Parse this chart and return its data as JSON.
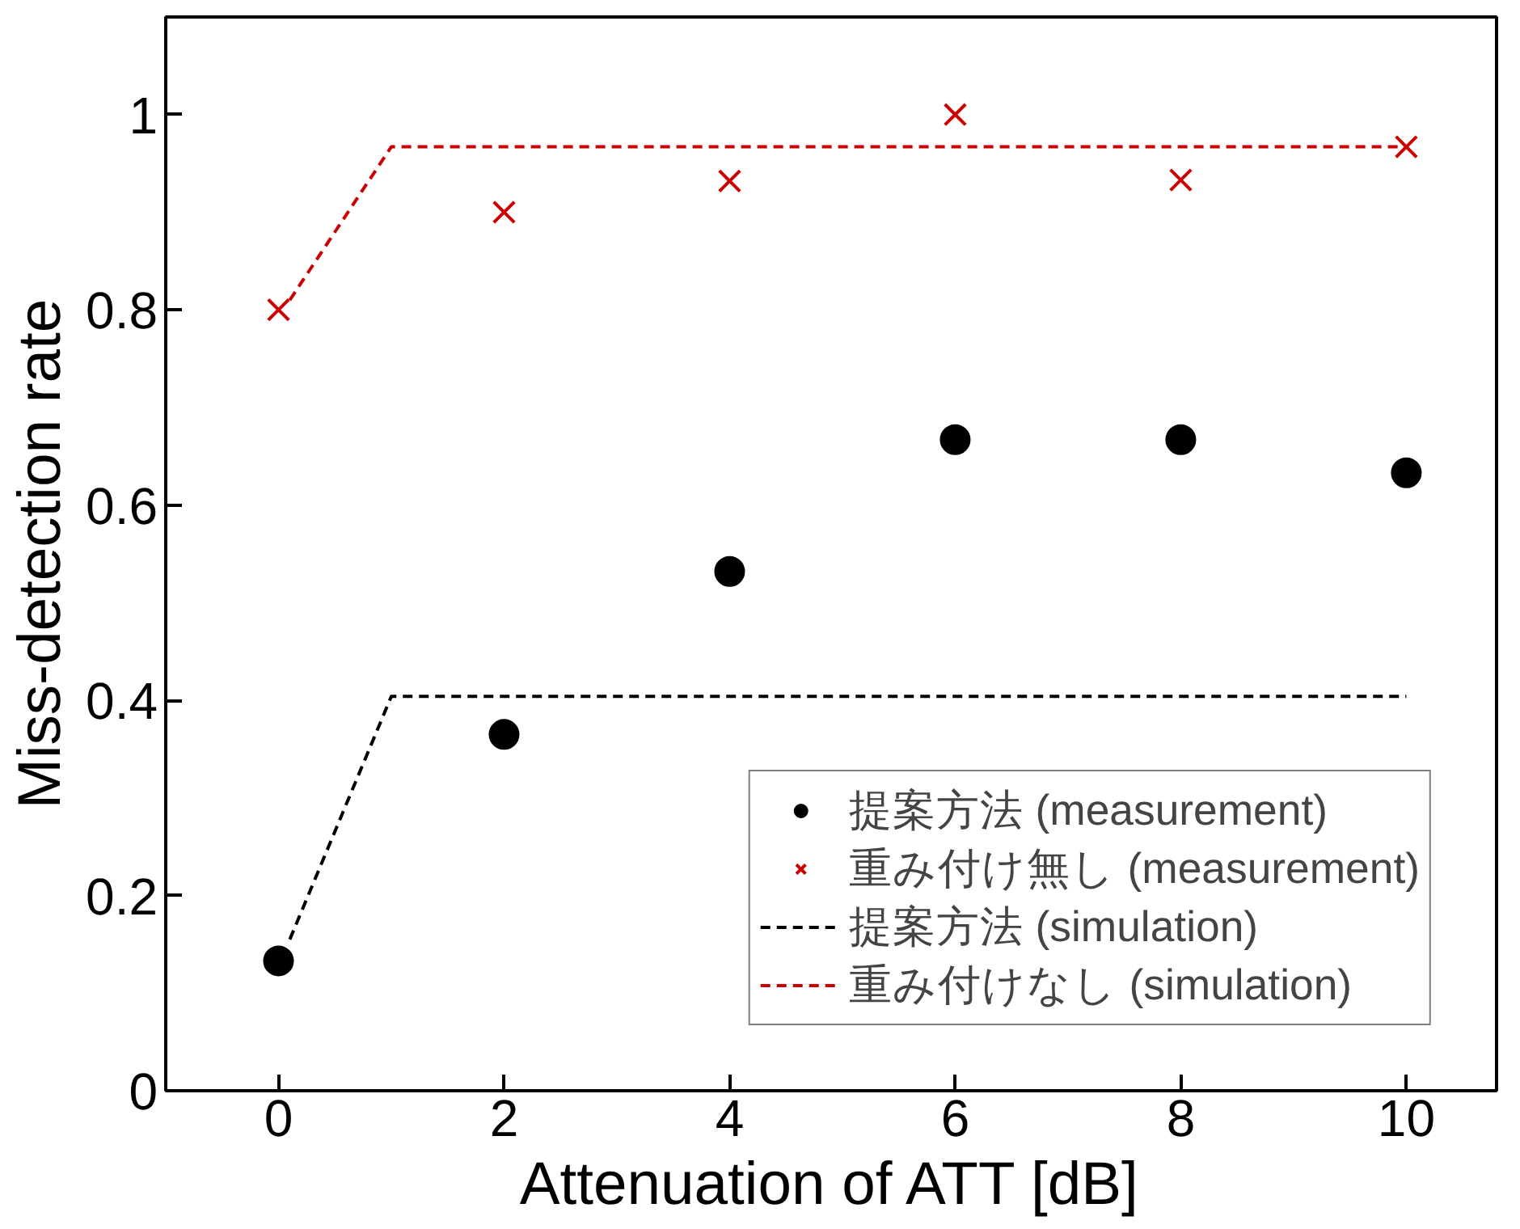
{
  "chart_data": {
    "type": "scatter",
    "xlabel": "Attenuation of ATT [dB]",
    "ylabel": "Miss-detection rate",
    "xlim": [
      -1,
      10.8
    ],
    "ylim": [
      0,
      1.1
    ],
    "xticks": [
      0,
      2,
      4,
      6,
      8,
      10
    ],
    "yticks": [
      0,
      0.2,
      0.4,
      0.6,
      0.8,
      1
    ],
    "grid": false,
    "legend": "bottom right",
    "series": [
      {
        "name": "提案方法 (measurement)",
        "marker": "circle",
        "color": "#000000",
        "x": [
          0,
          2,
          4,
          6,
          8,
          10
        ],
        "values": [
          0.133,
          0.365,
          0.532,
          0.667,
          0.667,
          0.633
        ]
      },
      {
        "name": "重み付け無し (measurement)",
        "marker": "cross",
        "color": "#cc0000",
        "x": [
          0,
          2,
          4,
          6,
          8,
          10
        ],
        "values": [
          0.8,
          0.9,
          0.932,
          1.0,
          0.933,
          0.967
        ]
      },
      {
        "name": "提案方法 (simulation)",
        "type": "line",
        "line_style": "dashed",
        "color": "#000000",
        "x": [
          0.1,
          1,
          10
        ],
        "values": [
          0.155,
          0.404,
          0.404
        ]
      },
      {
        "name": "重み付けなし (simulation)",
        "type": "line",
        "line_style": "dashed",
        "color": "#cc0000",
        "x": [
          0.1,
          1,
          10
        ],
        "values": [
          0.81,
          0.967,
          0.967
        ]
      }
    ]
  }
}
